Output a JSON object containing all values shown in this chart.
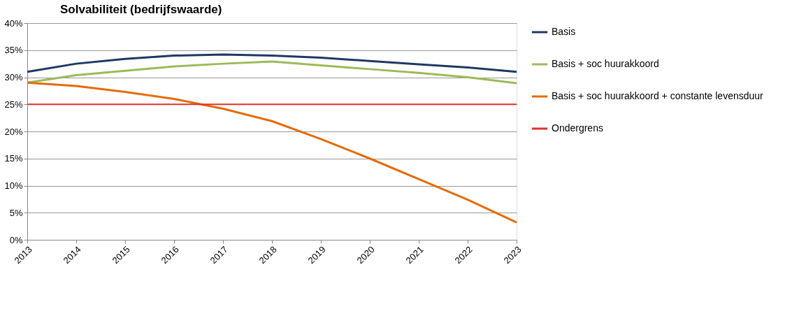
{
  "chart_data": {
    "type": "line",
    "title": "Solvabiliteit  (bedrijfswaarde)",
    "categories": [
      "2013",
      "2014",
      "2015",
      "2016",
      "2017",
      "2018",
      "2019",
      "2020",
      "2021",
      "2022",
      "2023"
    ],
    "series": [
      {
        "name": "Basis",
        "color": "#1f3864",
        "values": [
          31.0,
          32.5,
          33.4,
          34.0,
          34.2,
          34.0,
          33.6,
          33.0,
          32.4,
          31.8,
          31.0
        ]
      },
      {
        "name": "Basis + soc huurakkoord",
        "color": "#9bbb59",
        "values": [
          29.0,
          30.4,
          31.2,
          32.0,
          32.5,
          32.9,
          32.2,
          31.5,
          30.8,
          30.0,
          28.9
        ]
      },
      {
        "name": "Basis + soc huurakkoord + constante levensduur",
        "color": "#e46c0a",
        "values": [
          29.0,
          28.4,
          27.3,
          26.0,
          24.2,
          21.9,
          18.6,
          15.0,
          11.2,
          7.4,
          3.2
        ]
      }
    ],
    "ref_lines": [
      {
        "axis": "y",
        "value": 25,
        "label": "Ondergrens",
        "color": "#e0312a",
        "line_style": "solid"
      }
    ],
    "ylim": [
      0,
      40
    ],
    "yticks": [
      {
        "value": 0,
        "label": "0%"
      },
      {
        "value": 5,
        "label": "5%"
      },
      {
        "value": 10,
        "label": "10%"
      },
      {
        "value": 15,
        "label": "15%"
      },
      {
        "value": 20,
        "label": "20%"
      },
      {
        "value": 25,
        "label": "25%"
      },
      {
        "value": 30,
        "label": "30%"
      },
      {
        "value": 35,
        "label": "35%"
      },
      {
        "value": 40,
        "label": "40%"
      }
    ],
    "grid": "y",
    "legend": "right",
    "marker": "none",
    "line_style": "solid"
  }
}
